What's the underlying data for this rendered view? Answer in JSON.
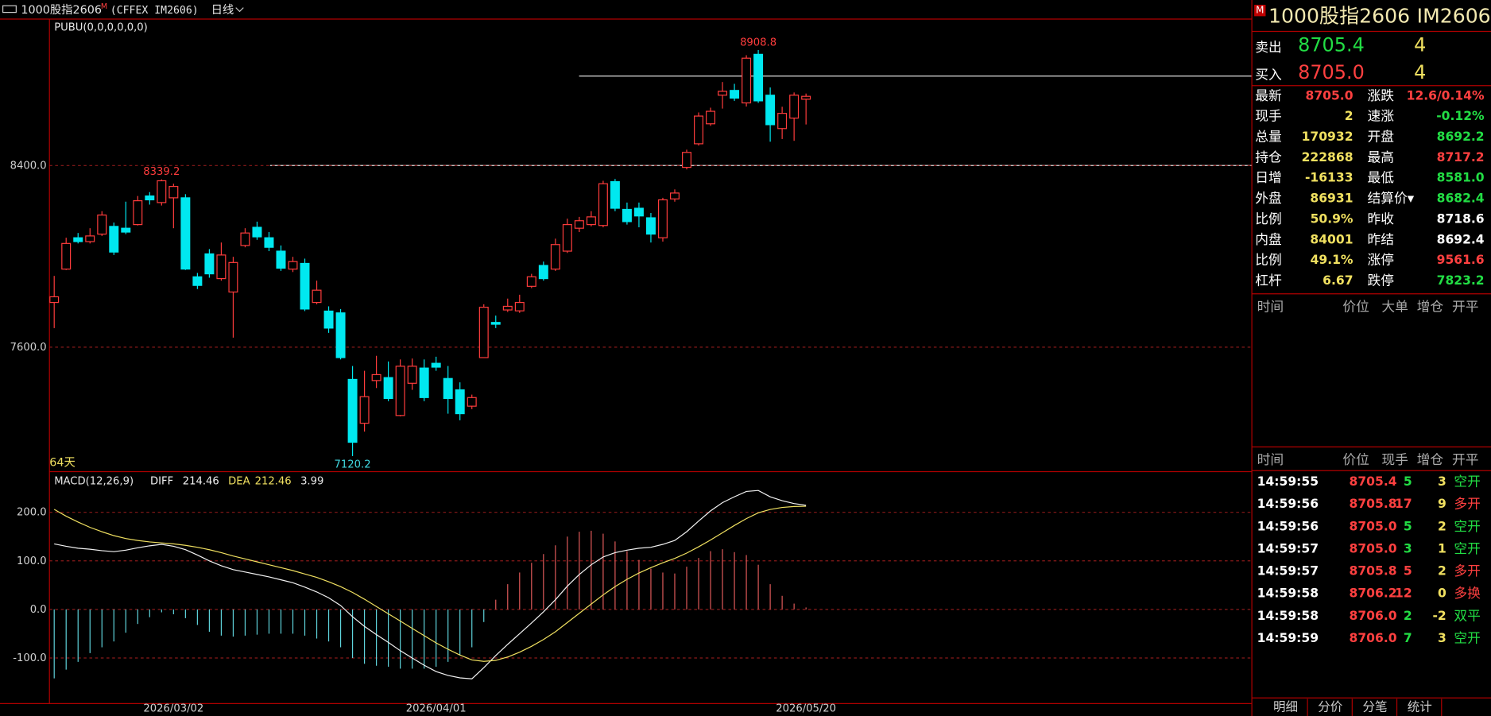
{
  "toolbar": {
    "name": "1000股指2606",
    "badge": "M",
    "exchange": "(CFFEX IM2606)",
    "period": "日线"
  },
  "chart_data": [
    {
      "type": "candlestick",
      "title": "PUBU(0,0,0,0,0,0)",
      "period_label": "64天",
      "categories": [
        null,
        null,
        null,
        null,
        null,
        null,
        null,
        null,
        null,
        null,
        "2026/03/02",
        null,
        null,
        null,
        null,
        null,
        null,
        null,
        null,
        null,
        null,
        null,
        null,
        null,
        null,
        null,
        null,
        null,
        null,
        null,
        null,
        null,
        "2026/04/01",
        null,
        null,
        null,
        null,
        null,
        null,
        null,
        null,
        null,
        null,
        null,
        null,
        null,
        null,
        null,
        null,
        null,
        null,
        null,
        null,
        null,
        null,
        null,
        null,
        null,
        null,
        null,
        null,
        null,
        null,
        "2026/05/20"
      ],
      "open": [
        7797,
        7944,
        8082,
        8065,
        8098,
        8132,
        8124,
        8140,
        8266,
        8237,
        8258,
        8258,
        7910,
        8011,
        7902,
        7843,
        8048,
        8128,
        8082,
        8023,
        7944,
        7969,
        7797,
        7759,
        7751,
        7458,
        7265,
        7453,
        7466,
        7299,
        7441,
        7508,
        7529,
        7462,
        7412,
        7340,
        7554,
        7709,
        7764,
        7760,
        7868,
        7960,
        7944,
        8023,
        8124,
        8140,
        8136,
        8329,
        8207,
        8212,
        8170,
        8082,
        8253,
        8392,
        8496,
        8584,
        8710,
        8731,
        8676,
        8890,
        8710,
        8563,
        8609,
        8692.2
      ],
      "high": [
        7914,
        8082,
        8103,
        8124,
        8199,
        8149,
        8241,
        8266,
        8283,
        8339.2,
        8320,
        8274,
        7927,
        8032,
        8061,
        7998,
        8124,
        8153,
        8107,
        8048,
        7998,
        7990,
        7893,
        7780,
        7768,
        7517,
        7496,
        7562,
        7537,
        7546,
        7550,
        7546,
        7558,
        7517,
        7445,
        7391,
        7789,
        7739,
        7814,
        7831,
        7923,
        7977,
        8078,
        8166,
        8174,
        8199,
        8333,
        8341,
        8237,
        8237,
        8191,
        8258,
        8295,
        8470,
        8634,
        8655,
        8768,
        8760,
        8886,
        8908.8,
        8744,
        8659,
        8722,
        8717.2
      ],
      "low": [
        7684,
        7940,
        8057,
        8057,
        8090,
        8006,
        8098,
        8136,
        8228,
        8224,
        8124,
        7940,
        7856,
        7906,
        7893,
        7642,
        8040,
        8073,
        8023,
        7936,
        7931,
        7759,
        7789,
        7663,
        7546,
        7120.2,
        7228,
        7420,
        7362,
        7295,
        7412,
        7362,
        7496,
        7307,
        7278,
        7327,
        7554,
        7684,
        7755,
        7751,
        7860,
        7893,
        7936,
        8015,
        8107,
        8132,
        8128,
        8199,
        8140,
        8128,
        8061,
        8065,
        8241,
        8383,
        8488,
        8575,
        8651,
        8685,
        8660,
        8676,
        8505,
        8517,
        8509,
        8581.0
      ],
      "close": [
        7822,
        8057,
        8065,
        8090,
        8182,
        8019,
        8107,
        8245,
        8249,
        8333,
        8308,
        7944,
        7872,
        7923,
        8006,
        7973,
        8103,
        8086,
        8040,
        7948,
        7977,
        7768,
        7851,
        7684,
        7554,
        7181,
        7382,
        7479,
        7374,
        7516,
        7516,
        7378,
        7512,
        7374,
        7307,
        7378,
        7776,
        7701,
        7780,
        7797,
        7910,
        7902,
        8052,
        8140,
        8157,
        8174,
        8320,
        8212,
        8153,
        8178,
        8098,
        8249,
        8279,
        8458,
        8618,
        8639,
        8727,
        8697,
        8873,
        8685,
        8580,
        8630,
        8710,
        8705.0
      ],
      "up_color": "#ff3c3c",
      "down_color": "#00e8f0",
      "ylim": [
        7056,
        9037
      ],
      "yticks": [
        {
          "value": 7600,
          "label": "7600.0"
        },
        {
          "value": 8400,
          "label": "8400.0"
        }
      ],
      "grid": true
    },
    {
      "type": "macd",
      "title": "MACD(12,26,9)",
      "series": [
        {
          "name": "DIFF",
          "color": "#f2f2f2",
          "values": [
            135,
            130,
            126,
            124,
            121,
            119,
            122,
            127,
            131,
            134,
            130,
            123,
            112,
            100,
            90,
            82,
            77,
            72,
            67,
            61,
            55,
            46,
            36,
            24,
            8,
            -15,
            -35,
            -52,
            -68,
            -85,
            -100,
            -115,
            -128,
            -136,
            -141,
            -143,
            -120,
            -95,
            -72,
            -50,
            -28,
            -5,
            20,
            48,
            72,
            92,
            108,
            117,
            122,
            126,
            128,
            134,
            142,
            160,
            182,
            203,
            220,
            232,
            243,
            245,
            232,
            224,
            218,
            214.46
          ]
        },
        {
          "name": "DEA",
          "color": "#f0e060",
          "values": [
            206,
            192,
            180,
            169,
            160,
            152,
            146,
            142,
            139,
            137,
            135,
            132,
            128,
            123,
            117,
            110,
            104,
            98,
            92,
            86,
            80,
            73,
            66,
            57,
            47,
            35,
            21,
            6,
            -9,
            -24,
            -39,
            -54,
            -69,
            -82,
            -94,
            -104,
            -107,
            -105,
            -98,
            -88,
            -76,
            -62,
            -46,
            -27,
            -8,
            11,
            30,
            47,
            62,
            75,
            86,
            96,
            105,
            116,
            129,
            143,
            158,
            173,
            187,
            199,
            206,
            210,
            212,
            212.46
          ]
        },
        {
          "color": "#e05a5a",
          "negative_color": "#5fd4dc",
          "values": [
            -142,
            -124,
            -108,
            -90,
            -78,
            -66,
            -48,
            -30,
            -16,
            -6,
            -10,
            -18,
            -32,
            -46,
            -54,
            -56,
            -54,
            -52,
            -50,
            -50,
            -50,
            -54,
            -60,
            -66,
            -78,
            -100,
            -112,
            -116,
            -118,
            -122,
            -122,
            -122,
            -118,
            -108,
            -94,
            -78,
            -26,
            20,
            52,
            76,
            96,
            114,
            132,
            150,
            160,
            162,
            156,
            140,
            120,
            102,
            84,
            76,
            74,
            88,
            106,
            120,
            124,
            118,
            112,
            92,
            52,
            28,
            12,
            3.99
          ]
        }
      ],
      "ylim": [
        -194,
        276
      ],
      "yticks": [
        {
          "value": -100,
          "label": "-100.0"
        },
        {
          "value": 0,
          "label": "0.0"
        },
        {
          "value": 100,
          "label": "100.0"
        },
        {
          "value": 200,
          "label": "200.0"
        }
      ],
      "grid": true
    }
  ],
  "quote": {
    "badge": "M",
    "name": "1000股指2606",
    "code": "IM2606",
    "book": [
      [
        "卖出",
        "8705.4",
        "4"
      ],
      [
        "买入",
        "8705.0",
        "4"
      ]
    ],
    "stats": [
      [
        "最新",
        "8705.0",
        "涨跌",
        "12.6/0.14%"
      ],
      [
        "现手",
        "2",
        "速涨",
        "-0.12%"
      ],
      [
        "总量",
        "170932",
        "开盘",
        "8692.2"
      ],
      [
        "持仓",
        "222868",
        "最高",
        "8717.2"
      ],
      [
        "日增",
        "-16133",
        "最低",
        "8581.0"
      ],
      [
        "外盘",
        "86931",
        "结算价▾",
        "8682.4"
      ],
      [
        "比例",
        "50.9%",
        "昨收",
        "8718.6"
      ],
      [
        "内盘",
        "84001",
        "昨结",
        "8692.4"
      ],
      [
        "比例",
        "49.1%",
        "涨停",
        "9561.6"
      ],
      [
        "杠杆",
        "6.67",
        "跌停",
        "7823.2"
      ]
    ],
    "big_orders": {
      "header": [
        "时间",
        "价位",
        "大单",
        "增仓",
        "开平"
      ]
    },
    "trades": {
      "header": [
        "时间",
        "价位",
        "现手",
        "增仓",
        "开平"
      ],
      "rows": [
        [
          "14:59:55",
          "8705.4",
          "5",
          "3",
          "空开"
        ],
        [
          "14:59:56",
          "8705.8",
          "17",
          "9",
          "多开"
        ],
        [
          "14:59:56",
          "8705.0",
          "5",
          "2",
          "空开"
        ],
        [
          "14:59:57",
          "8705.0",
          "3",
          "1",
          "空开"
        ],
        [
          "14:59:57",
          "8705.8",
          "5",
          "2",
          "多开"
        ],
        [
          "14:59:58",
          "8706.2",
          "12",
          "0",
          "多换"
        ],
        [
          "14:59:58",
          "8706.0",
          "2",
          "-2",
          "双平"
        ],
        [
          "14:59:59",
          "8706.0",
          "7",
          "3",
          "空开"
        ]
      ]
    },
    "tabs": [
      "明细",
      "分价",
      "分笔",
      "统计"
    ]
  }
}
